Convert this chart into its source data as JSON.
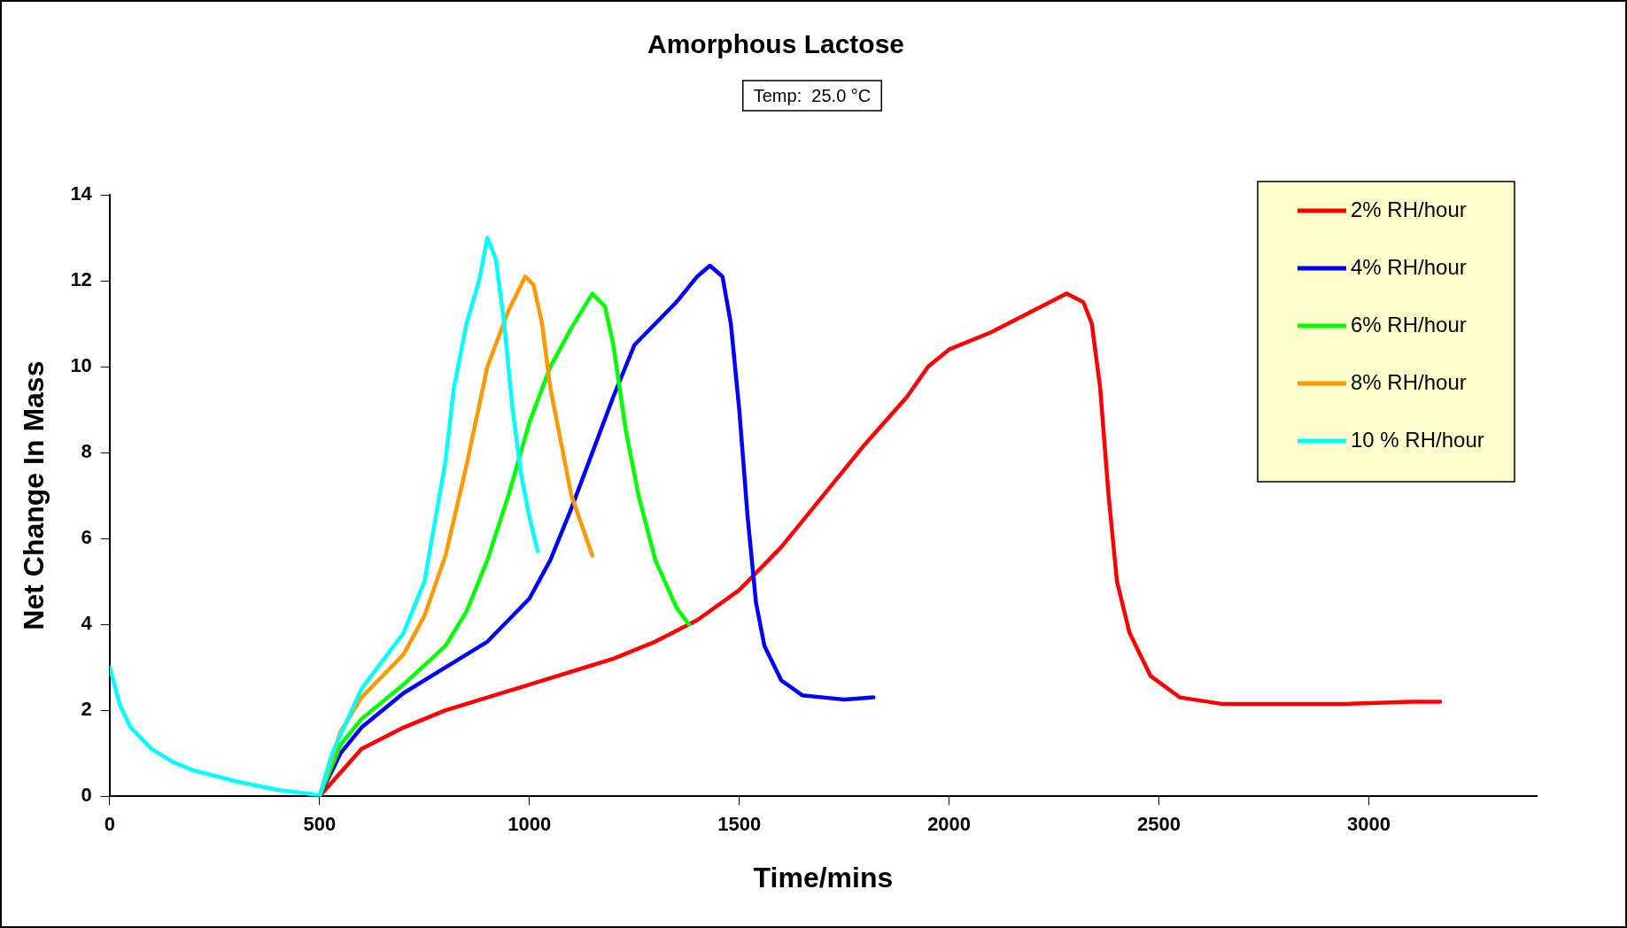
{
  "chart_data": {
    "type": "line",
    "title": "Amorphous Lactose",
    "subtitle": "Temp:  25.0 °C",
    "xlabel": "Time/mins",
    "ylabel": "Net Change In Mass",
    "xlim": [
      0,
      3400
    ],
    "xticks": [
      0,
      500,
      1000,
      1500,
      2000,
      2500,
      3000
    ],
    "ylim": [
      0,
      14
    ],
    "yticks": [
      0,
      2,
      4,
      6,
      8,
      10,
      12,
      14
    ],
    "grid": false,
    "legend": "top right",
    "marker": "none",
    "line_style": "solid",
    "series": [
      {
        "name": "2% RH/hour",
        "color": "#ff0000",
        "x": [
          500,
          600,
          700,
          800,
          900,
          1000,
          1100,
          1200,
          1300,
          1400,
          1500,
          1600,
          1700,
          1800,
          1900,
          1950,
          2000,
          2100,
          2200,
          2280,
          2320,
          2340,
          2360,
          2380,
          2400,
          2430,
          2480,
          2550,
          2650,
          2950,
          3100,
          3170
        ],
        "values": [
          0,
          1.1,
          1.6,
          2.0,
          2.3,
          2.6,
          2.9,
          3.2,
          3.6,
          4.1,
          4.8,
          5.8,
          7.0,
          8.2,
          9.3,
          10.0,
          10.4,
          10.8,
          11.3,
          11.7,
          11.5,
          11.0,
          9.5,
          7.0,
          5.0,
          3.8,
          2.8,
          2.3,
          2.15,
          2.15,
          2.2,
          2.2
        ]
      },
      {
        "name": "4% RH/hour",
        "color": "#0000ff",
        "x": [
          500,
          550,
          600,
          700,
          800,
          900,
          1000,
          1050,
          1100,
          1150,
          1200,
          1250,
          1300,
          1350,
          1400,
          1430,
          1460,
          1480,
          1500,
          1520,
          1540,
          1560,
          1600,
          1650,
          1700,
          1750,
          1820
        ],
        "values": [
          0,
          1.0,
          1.6,
          2.4,
          3.0,
          3.6,
          4.6,
          5.5,
          6.7,
          8.0,
          9.3,
          10.5,
          11.0,
          11.5,
          12.1,
          12.35,
          12.1,
          11.0,
          9.0,
          6.5,
          4.5,
          3.5,
          2.7,
          2.35,
          2.3,
          2.25,
          2.3
        ]
      },
      {
        "name": "6% RH/hour",
        "color": "#00ff00",
        "x": [
          500,
          550,
          600,
          700,
          800,
          850,
          900,
          950,
          1000,
          1050,
          1100,
          1150,
          1180,
          1200,
          1230,
          1260,
          1300,
          1350,
          1380
        ],
        "values": [
          0,
          1.2,
          1.8,
          2.6,
          3.5,
          4.3,
          5.5,
          7.0,
          8.7,
          10.0,
          10.9,
          11.7,
          11.4,
          10.5,
          8.5,
          7.0,
          5.5,
          4.4,
          4.0
        ]
      },
      {
        "name": "8% RH/hour",
        "color": "#ff9900",
        "x": [
          500,
          550,
          600,
          700,
          750,
          800,
          850,
          900,
          950,
          990,
          1010,
          1030,
          1050,
          1080,
          1100,
          1150
        ],
        "values": [
          0,
          1.5,
          2.3,
          3.3,
          4.2,
          5.6,
          7.7,
          10.0,
          11.3,
          12.1,
          11.9,
          11.0,
          9.5,
          8.0,
          7.0,
          5.6
        ]
      },
      {
        "name": "10 % RH/hour",
        "color": "#00ffff",
        "x": [
          0,
          25,
          50,
          100,
          150,
          200,
          300,
          400,
          480,
          500,
          530,
          600,
          700,
          750,
          800,
          820,
          850,
          880,
          900,
          920,
          940,
          960,
          980,
          1000,
          1020
        ],
        "values": [
          3.0,
          2.1,
          1.6,
          1.1,
          0.8,
          0.6,
          0.35,
          0.15,
          0.05,
          0,
          1.0,
          2.5,
          3.8,
          5.0,
          7.8,
          9.5,
          11.0,
          12.0,
          13.0,
          12.5,
          11.0,
          9.0,
          7.5,
          6.5,
          5.7
        ]
      }
    ]
  }
}
